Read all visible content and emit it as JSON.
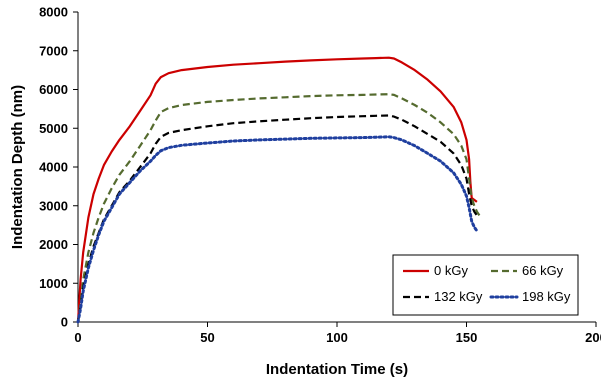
{
  "chart_data": {
    "type": "line",
    "title": "",
    "xlabel": "Indentation Time (s)",
    "ylabel": "Indentation Depth (nm)",
    "xlim": [
      0,
      200
    ],
    "ylim": [
      0,
      8000
    ],
    "xticks": [
      0,
      50,
      100,
      150,
      200
    ],
    "yticks": [
      0,
      1000,
      2000,
      3000,
      4000,
      5000,
      6000,
      7000,
      8000
    ],
    "grid": false,
    "legend_position": "bottom-right",
    "series": [
      {
        "name": "0 kGy",
        "color": "#cc0000",
        "dash": "solid",
        "x": [
          0,
          1,
          2,
          4,
          6,
          8,
          10,
          13,
          16,
          20,
          24,
          28,
          30,
          32,
          35,
          40,
          50,
          60,
          70,
          80,
          90,
          100,
          110,
          115,
          120,
          122,
          125,
          130,
          135,
          140,
          145,
          148,
          150,
          151,
          151.5,
          152,
          153,
          154
        ],
        "y": [
          0,
          1100,
          1800,
          2700,
          3300,
          3700,
          4050,
          4400,
          4700,
          5050,
          5450,
          5850,
          6150,
          6320,
          6420,
          6500,
          6580,
          6640,
          6680,
          6720,
          6750,
          6780,
          6800,
          6810,
          6820,
          6800,
          6700,
          6500,
          6250,
          5950,
          5550,
          5150,
          4700,
          4200,
          3600,
          3200,
          3150,
          3100
        ]
      },
      {
        "name": "66 kGy",
        "color": "#556b2f",
        "dash": "dash",
        "x": [
          0,
          1,
          2,
          4,
          6,
          8,
          10,
          13,
          16,
          20,
          24,
          28,
          30,
          32,
          35,
          40,
          50,
          60,
          70,
          80,
          90,
          100,
          110,
          115,
          120,
          122,
          125,
          130,
          135,
          140,
          145,
          148,
          150,
          151,
          152,
          153,
          154,
          155
        ],
        "y": [
          0,
          500,
          1100,
          1800,
          2300,
          2700,
          3050,
          3450,
          3800,
          4150,
          4550,
          4950,
          5200,
          5420,
          5520,
          5600,
          5680,
          5730,
          5770,
          5800,
          5830,
          5850,
          5860,
          5870,
          5880,
          5860,
          5770,
          5600,
          5400,
          5150,
          4850,
          4550,
          4200,
          3700,
          3200,
          3000,
          2850,
          2750
        ]
      },
      {
        "name": "132 kGy",
        "color": "#000000",
        "dash": "dash",
        "x": [
          0,
          1,
          2,
          4,
          6,
          8,
          10,
          13,
          16,
          20,
          24,
          28,
          30,
          32,
          35,
          40,
          50,
          60,
          70,
          80,
          90,
          100,
          110,
          115,
          120,
          122,
          125,
          130,
          135,
          140,
          145,
          148,
          150,
          151,
          152,
          153,
          154
        ],
        "y": [
          0,
          400,
          900,
          1500,
          1950,
          2300,
          2650,
          3000,
          3350,
          3650,
          4000,
          4350,
          4600,
          4780,
          4880,
          4950,
          5050,
          5130,
          5180,
          5220,
          5260,
          5290,
          5310,
          5320,
          5330,
          5300,
          5220,
          5050,
          4850,
          4650,
          4350,
          4050,
          3700,
          3300,
          3000,
          2850,
          2750
        ]
      },
      {
        "name": "198 kGy",
        "color": "#1f3f9f",
        "dash": "dot",
        "x": [
          0,
          1,
          2,
          4,
          6,
          8,
          10,
          13,
          16,
          20,
          24,
          28,
          30,
          32,
          35,
          40,
          50,
          60,
          70,
          80,
          90,
          100,
          110,
          115,
          120,
          122,
          125,
          130,
          135,
          140,
          145,
          148,
          150,
          151,
          152,
          153,
          154
        ],
        "y": [
          0,
          350,
          800,
          1400,
          1850,
          2250,
          2600,
          2950,
          3300,
          3600,
          3900,
          4150,
          4300,
          4420,
          4500,
          4560,
          4620,
          4670,
          4700,
          4720,
          4740,
          4750,
          4760,
          4770,
          4780,
          4760,
          4700,
          4550,
          4350,
          4150,
          3850,
          3550,
          3250,
          2950,
          2600,
          2450,
          2350
        ]
      }
    ]
  }
}
